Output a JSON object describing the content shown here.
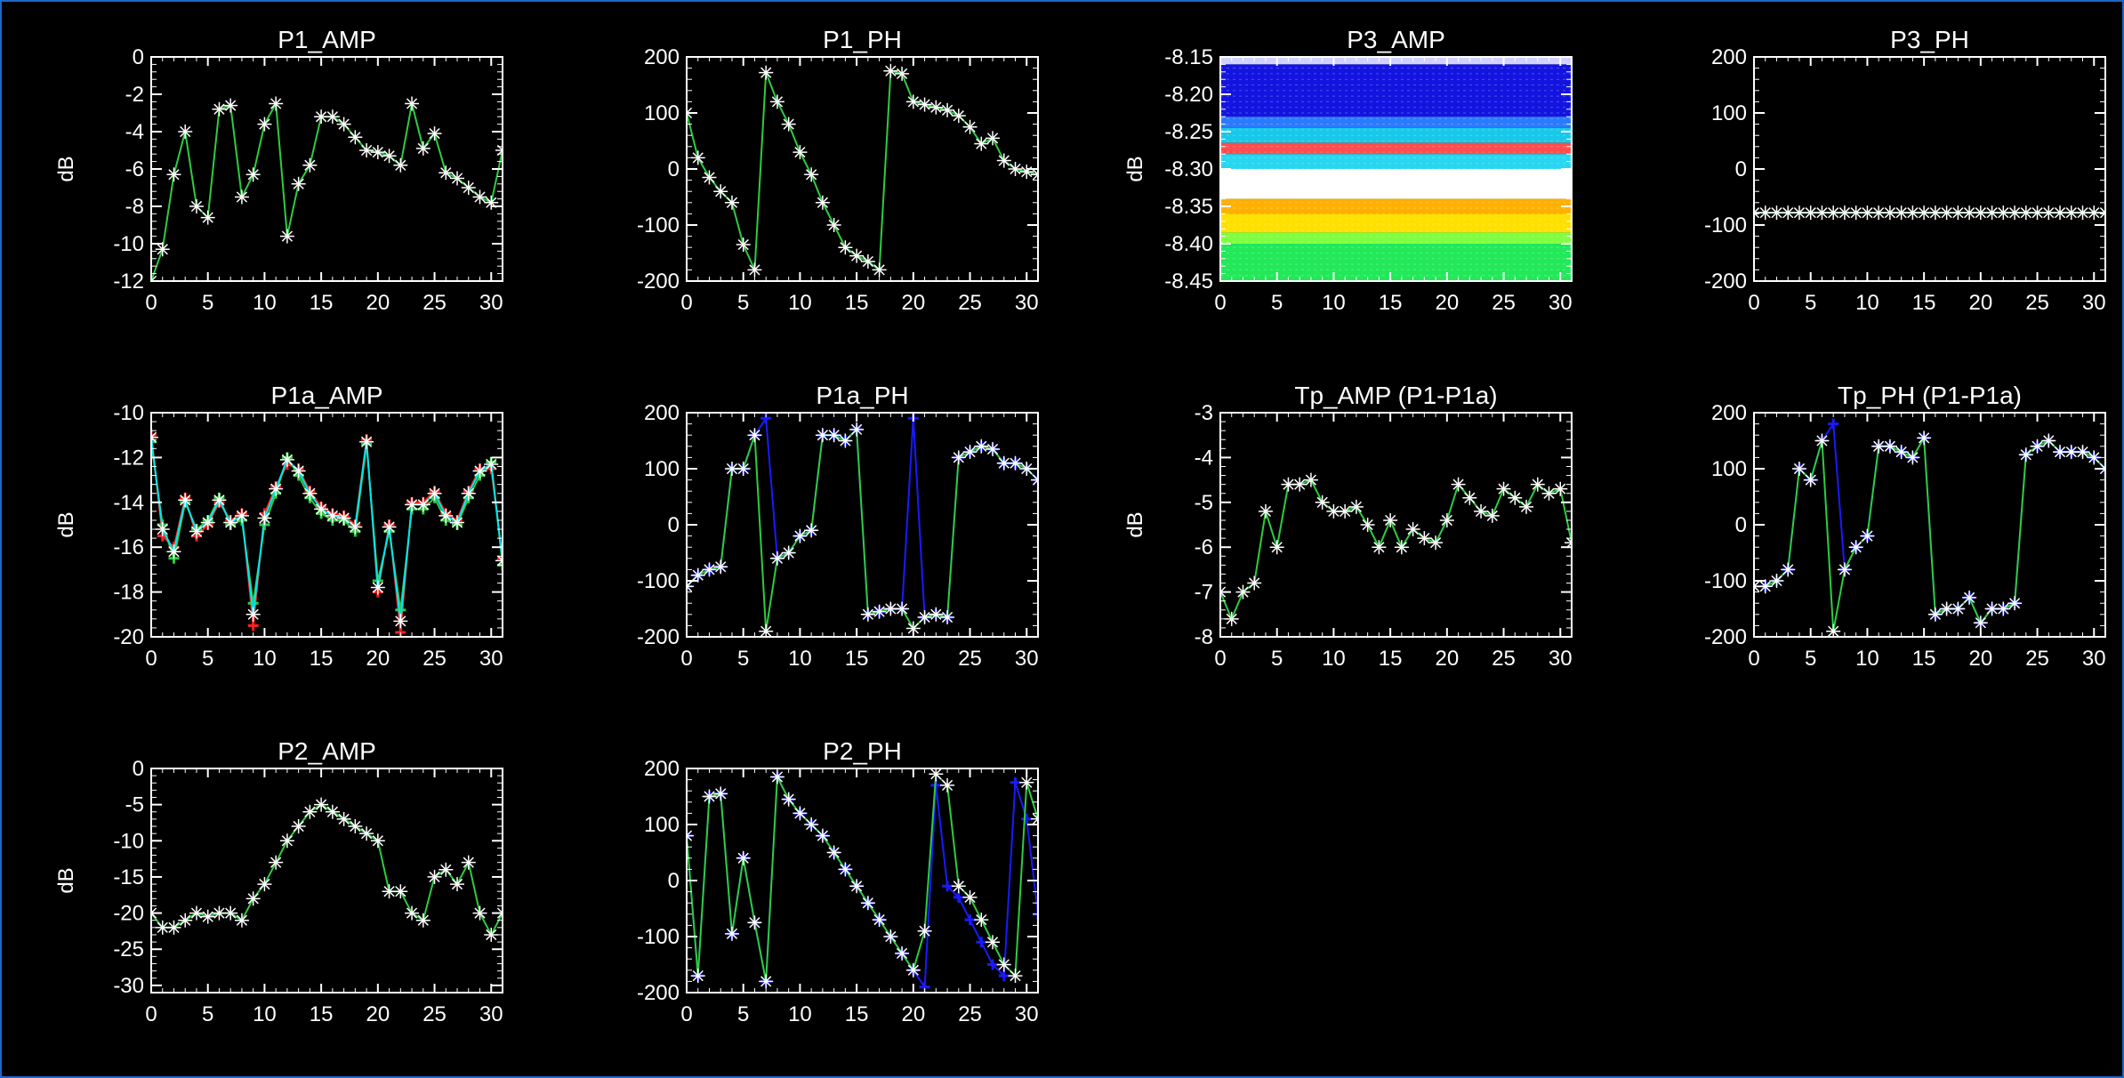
{
  "window": {
    "border_color": "#1e66c8",
    "background": "#000000"
  },
  "colors": {
    "axis": "#ffffff",
    "green": "#2ecc40",
    "cyan": "#00e5ee",
    "blue": "#1a1aff",
    "red": "#ff2020",
    "orange": "#ff8c00",
    "yellow": "#ffff00",
    "white_star": "#ffffff"
  },
  "chart_data": [
    {
      "id": "p1_amp",
      "type": "line",
      "title": "P1_AMP",
      "ylabel": "dB",
      "xlabel": "",
      "xlim": [
        0,
        31
      ],
      "ylim": [
        -12,
        0
      ],
      "xticks": [
        "0",
        "5",
        "10",
        "15",
        "20",
        "25",
        "30"
      ],
      "yticks": [
        "0",
        "-2",
        "-4",
        "-6",
        "-8",
        "-10",
        "-12"
      ],
      "x": [
        0,
        1,
        2,
        3,
        4,
        5,
        6,
        7,
        8,
        9,
        10,
        11,
        12,
        13,
        14,
        15,
        16,
        17,
        18,
        19,
        20,
        21,
        22,
        23,
        24,
        25,
        26,
        27,
        28,
        29,
        30,
        31
      ],
      "series": [
        {
          "values": [
            -12,
            -10.3,
            -6.3,
            -4,
            -8,
            -8.6,
            -2.8,
            -2.6,
            -7.5,
            -6.3,
            -3.6,
            -2.5,
            -9.6,
            -6.8,
            -5.8,
            -3.2,
            -3.2,
            -3.6,
            -4.3,
            -5,
            -5.1,
            -5.3,
            -5.8,
            -2.5,
            -4.9,
            -4.1,
            -6.2,
            -6.5,
            -7,
            -7.5,
            -7.8,
            -5
          ]
        }
      ]
    },
    {
      "id": "p1_ph",
      "type": "line",
      "title": "P1_PH",
      "ylabel": "",
      "xlabel": "",
      "xlim": [
        0,
        31
      ],
      "ylim": [
        -200,
        200
      ],
      "xticks": [
        "0",
        "5",
        "10",
        "15",
        "20",
        "25",
        "30"
      ],
      "yticks": [
        "200",
        "100",
        "0",
        "-100",
        "-200"
      ],
      "x": [
        0,
        1,
        2,
        3,
        4,
        5,
        6,
        7,
        8,
        9,
        10,
        11,
        12,
        13,
        14,
        15,
        16,
        17,
        18,
        19,
        20,
        21,
        22,
        23,
        24,
        25,
        26,
        27,
        28,
        29,
        30,
        31
      ],
      "series": [
        {
          "values": [
            100,
            20,
            -15,
            -40,
            -60,
            -135,
            -180,
            172,
            120,
            80,
            30,
            -10,
            -60,
            -100,
            -140,
            -155,
            -165,
            -180,
            175,
            170,
            120,
            115,
            110,
            105,
            95,
            75,
            45,
            55,
            15,
            0,
            -5,
            -10
          ]
        }
      ]
    },
    {
      "id": "p3_amp",
      "type": "heatmap",
      "title": "P3_AMP",
      "ylabel": "dB",
      "xlabel": "",
      "xlim": [
        0,
        31
      ],
      "ylim": [
        -8.45,
        -8.15
      ],
      "xticks": [
        "0",
        "5",
        "10",
        "15",
        "20",
        "25",
        "30"
      ],
      "yticks": [
        "-8.15",
        "-8.20",
        "-8.25",
        "-8.30",
        "-8.35",
        "-8.40",
        "-8.45"
      ],
      "bands": [
        {
          "from": -8.15,
          "to": -8.16,
          "color": "#d0d0ff"
        },
        {
          "from": -8.16,
          "to": -8.23,
          "color": "#1414e0"
        },
        {
          "from": -8.23,
          "to": -8.245,
          "color": "#2a7bff"
        },
        {
          "from": -8.245,
          "to": -8.265,
          "color": "#18c8e8"
        },
        {
          "from": -8.265,
          "to": -8.28,
          "color": "#ff4d4d"
        },
        {
          "from": -8.28,
          "to": -8.3,
          "color": "#29d6f0"
        },
        {
          "from": -8.3,
          "to": -8.34,
          "color": "#ffffff"
        },
        {
          "from": -8.34,
          "to": -8.36,
          "color": "#ffb000"
        },
        {
          "from": -8.36,
          "to": -8.385,
          "color": "#ffe000"
        },
        {
          "from": -8.385,
          "to": -8.4,
          "color": "#80ff40"
        },
        {
          "from": -8.4,
          "to": -8.45,
          "color": "#22e85a"
        }
      ]
    },
    {
      "id": "p3_ph",
      "type": "line",
      "title": "P3_PH",
      "ylabel": "",
      "xlabel": "",
      "xlim": [
        0,
        31
      ],
      "ylim": [
        -200,
        200
      ],
      "xticks": [
        "0",
        "5",
        "10",
        "15",
        "20",
        "25",
        "30"
      ],
      "yticks": [
        "200",
        "100",
        "0",
        "-100",
        "-200"
      ],
      "x": [
        0,
        1,
        2,
        3,
        4,
        5,
        6,
        7,
        8,
        9,
        10,
        11,
        12,
        13,
        14,
        15,
        16,
        17,
        18,
        19,
        20,
        21,
        22,
        23,
        24,
        25,
        26,
        27,
        28,
        29,
        30,
        31
      ],
      "series": [
        {
          "values": [
            -78,
            -78,
            -78,
            -78,
            -78,
            -78,
            -78,
            -78,
            -78,
            -78,
            -78,
            -78,
            -78,
            -78,
            -78,
            -78,
            -78,
            -78,
            -78,
            -78,
            -78,
            -78,
            -78,
            -78,
            -78,
            -78,
            -78,
            -78,
            -78,
            -78,
            -78,
            -78
          ]
        }
      ]
    },
    {
      "id": "p1a_amp",
      "type": "line",
      "title": "P1a_AMP",
      "ylabel": "dB",
      "xlabel": "",
      "xlim": [
        0,
        31
      ],
      "ylim": [
        -20,
        -10
      ],
      "xticks": [
        "0",
        "5",
        "10",
        "15",
        "20",
        "25",
        "30"
      ],
      "yticks": [
        "-10",
        "-12",
        "-14",
        "-16",
        "-18",
        "-20"
      ],
      "x": [
        0,
        1,
        2,
        3,
        4,
        5,
        6,
        7,
        8,
        9,
        10,
        11,
        12,
        13,
        14,
        15,
        16,
        17,
        18,
        19,
        20,
        21,
        22,
        23,
        24,
        25,
        26,
        27,
        28,
        29,
        30,
        31
      ],
      "series": [
        {
          "values": [
            -11,
            -15.5,
            -16,
            -13.8,
            -15.5,
            -15,
            -14,
            -14.8,
            -14.5,
            -19.5,
            -14.5,
            -13.3,
            -12.3,
            -12.5,
            -13.5,
            -14.2,
            -14.5,
            -14.6,
            -15,
            -11.2,
            -18,
            -15,
            -19.8,
            -14,
            -14,
            -13.5,
            -14.5,
            -14.8,
            -13.5,
            -12.5,
            -12.5,
            -16.5
          ]
        },
        {
          "values": [
            -11.3,
            -15,
            -16.5,
            -14,
            -15.2,
            -14.8,
            -13.8,
            -15,
            -14.8,
            -18.5,
            -15,
            -13.6,
            -12,
            -12.8,
            -13.8,
            -14.5,
            -14.8,
            -14.8,
            -15.3,
            -11.4,
            -17.5,
            -15.3,
            -18.8,
            -14.3,
            -14.3,
            -13.8,
            -14.8,
            -15,
            -13.8,
            -12.8,
            -12.2,
            -16.8
          ]
        },
        {
          "values": [
            -11.1,
            -15.2,
            -16.2,
            -13.9,
            -15.3,
            -14.9,
            -13.9,
            -14.9,
            -14.6,
            -19,
            -14.7,
            -13.4,
            -12.1,
            -12.6,
            -13.6,
            -14.3,
            -14.6,
            -14.7,
            -15.1,
            -11.3,
            -17.8,
            -15.1,
            -19.3,
            -14.1,
            -14.1,
            -13.6,
            -14.6,
            -14.9,
            -13.6,
            -12.6,
            -12.3,
            -16.6
          ]
        }
      ]
    },
    {
      "id": "p1a_ph",
      "type": "line",
      "title": "P1a_PH",
      "ylabel": "",
      "xlabel": "",
      "xlim": [
        0,
        31
      ],
      "ylim": [
        -200,
        200
      ],
      "xticks": [
        "0",
        "5",
        "10",
        "15",
        "20",
        "25",
        "30"
      ],
      "yticks": [
        "200",
        "100",
        "0",
        "-100",
        "-200"
      ],
      "x": [
        0,
        1,
        2,
        3,
        4,
        5,
        6,
        7,
        8,
        9,
        10,
        11,
        12,
        13,
        14,
        15,
        16,
        17,
        18,
        19,
        20,
        21,
        22,
        23,
        24,
        25,
        26,
        27,
        28,
        29,
        30,
        31
      ],
      "series": [
        {
          "values": [
            -110,
            -90,
            -80,
            -75,
            100,
            100,
            160,
            190,
            -60,
            -50,
            -20,
            -10,
            160,
            160,
            150,
            170,
            -160,
            -155,
            -150,
            -150,
            190,
            -165,
            -160,
            -165,
            120,
            130,
            140,
            135,
            110,
            110,
            100,
            80
          ]
        },
        {
          "values": [
            -110,
            -90,
            -80,
            -75,
            100,
            100,
            160,
            -190,
            -60,
            -50,
            -20,
            -10,
            160,
            160,
            150,
            170,
            -160,
            -155,
            -150,
            -150,
            -185,
            -165,
            -160,
            -165,
            120,
            130,
            140,
            135,
            110,
            110,
            100,
            80
          ]
        }
      ]
    },
    {
      "id": "tp_amp",
      "type": "line",
      "title": "Tp_AMP (P1-P1a)",
      "ylabel": "dB",
      "xlabel": "",
      "xlim": [
        0,
        31
      ],
      "ylim": [
        -8,
        -3
      ],
      "xticks": [
        "0",
        "5",
        "10",
        "15",
        "20",
        "25",
        "30"
      ],
      "yticks": [
        "-3",
        "-4",
        "-5",
        "-6",
        "-7",
        "-8"
      ],
      "x": [
        0,
        1,
        2,
        3,
        4,
        5,
        6,
        7,
        8,
        9,
        10,
        11,
        12,
        13,
        14,
        15,
        16,
        17,
        18,
        19,
        20,
        21,
        22,
        23,
        24,
        25,
        26,
        27,
        28,
        29,
        30,
        31
      ],
      "series": [
        {
          "values": [
            -7,
            -7.6,
            -7,
            -6.8,
            -5.2,
            -6,
            -4.6,
            -4.6,
            -4.5,
            -5,
            -5.2,
            -5.2,
            -5.1,
            -5.5,
            -6,
            -5.4,
            -6,
            -5.6,
            -5.8,
            -5.9,
            -5.4,
            -4.6,
            -4.9,
            -5.2,
            -5.3,
            -4.7,
            -4.9,
            -5.1,
            -4.6,
            -4.8,
            -4.7,
            -5.9
          ]
        }
      ]
    },
    {
      "id": "tp_ph",
      "type": "line",
      "title": "Tp_PH (P1-P1a)",
      "ylabel": "",
      "xlabel": "",
      "xlim": [
        0,
        31
      ],
      "ylim": [
        -200,
        200
      ],
      "xticks": [
        "0",
        "5",
        "10",
        "15",
        "20",
        "25",
        "30"
      ],
      "yticks": [
        "200",
        "100",
        "0",
        "-100",
        "-200"
      ],
      "x": [
        0,
        1,
        2,
        3,
        4,
        5,
        6,
        7,
        8,
        9,
        10,
        11,
        12,
        13,
        14,
        15,
        16,
        17,
        18,
        19,
        20,
        21,
        22,
        23,
        24,
        25,
        26,
        27,
        28,
        29,
        30,
        31
      ],
      "series": [
        {
          "values": [
            -110,
            -110,
            -100,
            -80,
            100,
            80,
            150,
            180,
            -80,
            -40,
            -20,
            140,
            140,
            130,
            120,
            155,
            -160,
            -150,
            -150,
            -130,
            -175,
            -150,
            -150,
            -140,
            125,
            140,
            150,
            130,
            130,
            130,
            120,
            100
          ]
        },
        {
          "values": [
            -110,
            -110,
            -100,
            -80,
            100,
            80,
            150,
            -190,
            -80,
            -40,
            -20,
            140,
            140,
            130,
            120,
            155,
            -160,
            -150,
            -150,
            -130,
            -175,
            -150,
            -150,
            -140,
            125,
            140,
            150,
            130,
            130,
            130,
            120,
            100
          ]
        }
      ]
    },
    {
      "id": "p2_amp",
      "type": "line",
      "title": "P2_AMP",
      "ylabel": "dB",
      "xlabel": "",
      "xlim": [
        0,
        31
      ],
      "ylim": [
        -31,
        0
      ],
      "xticks": [
        "0",
        "5",
        "10",
        "15",
        "20",
        "25",
        "30"
      ],
      "yticks": [
        "0",
        "-5",
        "-10",
        "-15",
        "-20",
        "-25",
        "-30"
      ],
      "x": [
        0,
        1,
        2,
        3,
        4,
        5,
        6,
        7,
        8,
        9,
        10,
        11,
        12,
        13,
        14,
        15,
        16,
        17,
        18,
        19,
        20,
        21,
        22,
        23,
        24,
        25,
        26,
        27,
        28,
        29,
        30,
        31
      ],
      "series": [
        {
          "values": [
            -20,
            -22,
            -22,
            -21,
            -20,
            -20.5,
            -20,
            -20,
            -21,
            -18,
            -16,
            -13,
            -10,
            -8,
            -6,
            -5,
            -6,
            -7,
            -8,
            -9,
            -10,
            -17,
            -17,
            -20,
            -21,
            -15,
            -14,
            -16,
            -13,
            -20,
            -23,
            -20
          ]
        }
      ]
    },
    {
      "id": "p2_ph",
      "type": "line",
      "title": "P2_PH",
      "ylabel": "",
      "xlabel": "",
      "xlim": [
        0,
        31
      ],
      "ylim": [
        -200,
        200
      ],
      "xticks": [
        "0",
        "5",
        "10",
        "15",
        "20",
        "25",
        "30"
      ],
      "yticks": [
        "200",
        "100",
        "0",
        "-100",
        "-200"
      ],
      "x": [
        0,
        1,
        2,
        3,
        4,
        5,
        6,
        7,
        8,
        9,
        10,
        11,
        12,
        13,
        14,
        15,
        16,
        17,
        18,
        19,
        20,
        21,
        22,
        23,
        24,
        25,
        26,
        27,
        28,
        29,
        30,
        31
      ],
      "series": [
        {
          "values": [
            80,
            -170,
            150,
            155,
            -95,
            40,
            -75,
            -180,
            185,
            145,
            120,
            100,
            80,
            50,
            20,
            -10,
            -40,
            -70,
            -100,
            -130,
            -160,
            -190,
            170,
            -10,
            -30,
            -70,
            -110,
            -150,
            -170,
            175,
            110,
            -60
          ]
        },
        {
          "values": [
            80,
            -170,
            150,
            155,
            -95,
            40,
            -75,
            -180,
            185,
            145,
            120,
            100,
            80,
            50,
            20,
            -10,
            -40,
            -70,
            -100,
            -130,
            -160,
            -90,
            190,
            170,
            -10,
            -30,
            -70,
            -110,
            -150,
            -170,
            175,
            110
          ]
        }
      ]
    }
  ]
}
